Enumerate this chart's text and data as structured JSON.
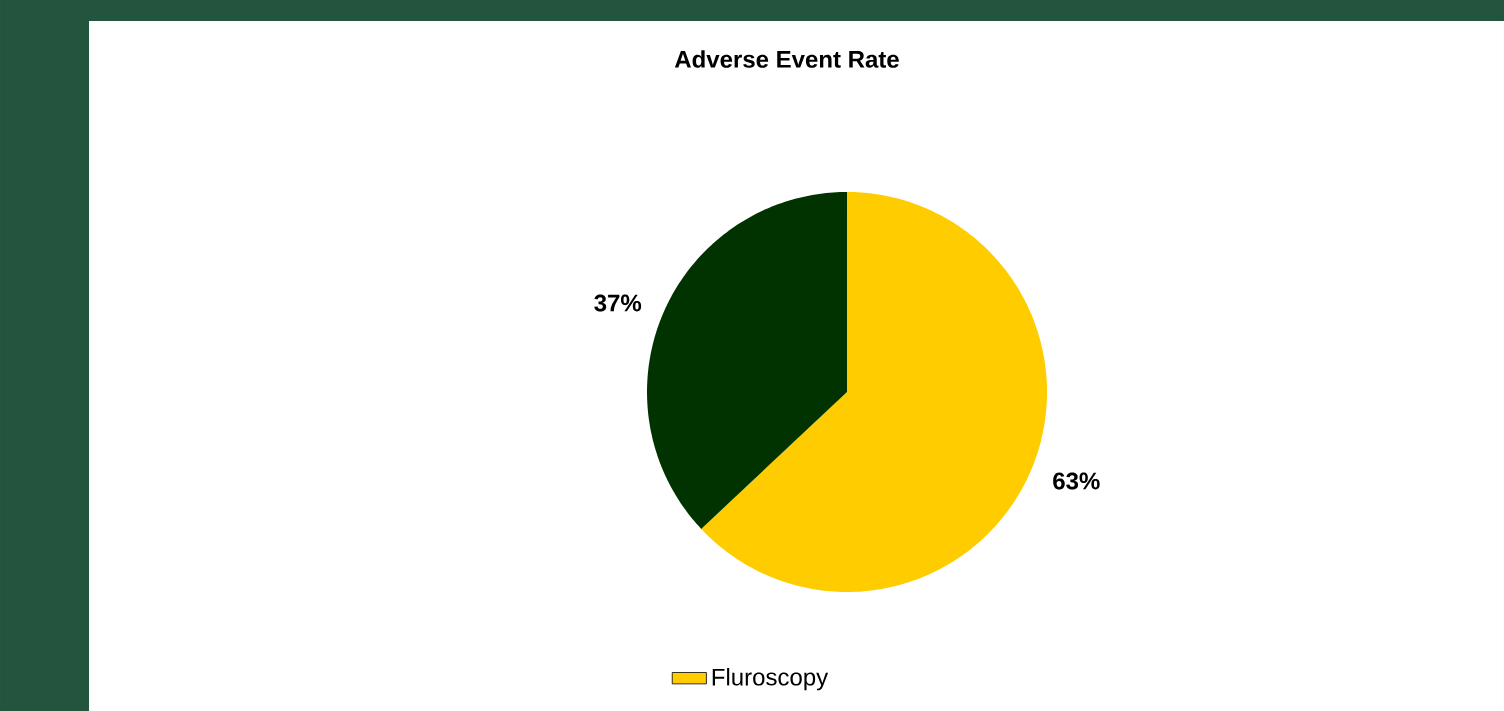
{
  "chart_data": {
    "type": "pie",
    "title": "Adverse Event Rate",
    "categories": [
      "Fluroscopy",
      null
    ],
    "values": [
      63,
      37
    ],
    "colors": [
      "#ffcc00",
      "#003300"
    ],
    "value_labels": [
      "63%",
      "37%"
    ],
    "legend": "bottom"
  }
}
